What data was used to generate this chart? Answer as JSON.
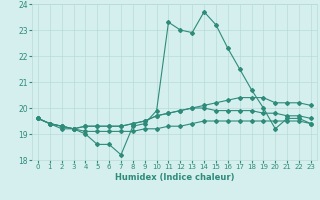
{
  "xlabel": "Humidex (Indice chaleur)",
  "x": [
    0,
    1,
    2,
    3,
    4,
    5,
    6,
    7,
    8,
    9,
    10,
    11,
    12,
    13,
    14,
    15,
    16,
    17,
    18,
    19,
    20,
    21,
    22,
    23
  ],
  "line1": [
    19.6,
    19.4,
    19.2,
    19.2,
    19.0,
    18.6,
    18.6,
    18.2,
    19.3,
    19.4,
    19.9,
    23.3,
    23.0,
    22.9,
    23.7,
    23.2,
    22.3,
    21.5,
    20.7,
    20.0,
    19.2,
    19.6,
    19.6,
    19.4
  ],
  "line2": [
    19.6,
    19.4,
    19.3,
    19.2,
    19.3,
    19.3,
    19.3,
    19.3,
    19.4,
    19.5,
    19.7,
    19.8,
    19.9,
    20.0,
    20.1,
    20.2,
    20.3,
    20.4,
    20.4,
    20.4,
    20.2,
    20.2,
    20.2,
    20.1
  ],
  "line3": [
    19.6,
    19.4,
    19.3,
    19.2,
    19.3,
    19.3,
    19.3,
    19.3,
    19.4,
    19.5,
    19.7,
    19.8,
    19.9,
    20.0,
    20.0,
    19.9,
    19.9,
    19.9,
    19.9,
    19.8,
    19.8,
    19.7,
    19.7,
    19.6
  ],
  "line4": [
    19.6,
    19.4,
    19.3,
    19.2,
    19.1,
    19.1,
    19.1,
    19.1,
    19.1,
    19.2,
    19.2,
    19.3,
    19.3,
    19.4,
    19.5,
    19.5,
    19.5,
    19.5,
    19.5,
    19.5,
    19.5,
    19.5,
    19.5,
    19.4
  ],
  "line_color": "#2e8b7a",
  "bg_color": "#d4efed",
  "grid_color": "#b8dbd8",
  "ylim": [
    18.0,
    24.0
  ],
  "yticks": [
    18,
    19,
    20,
    21,
    22,
    23,
    24
  ],
  "xlim": [
    -0.5,
    23.5
  ],
  "xticks": [
    0,
    1,
    2,
    3,
    4,
    5,
    6,
    7,
    8,
    9,
    10,
    11,
    12,
    13,
    14,
    15,
    16,
    17,
    18,
    19,
    20,
    21,
    22,
    23
  ]
}
